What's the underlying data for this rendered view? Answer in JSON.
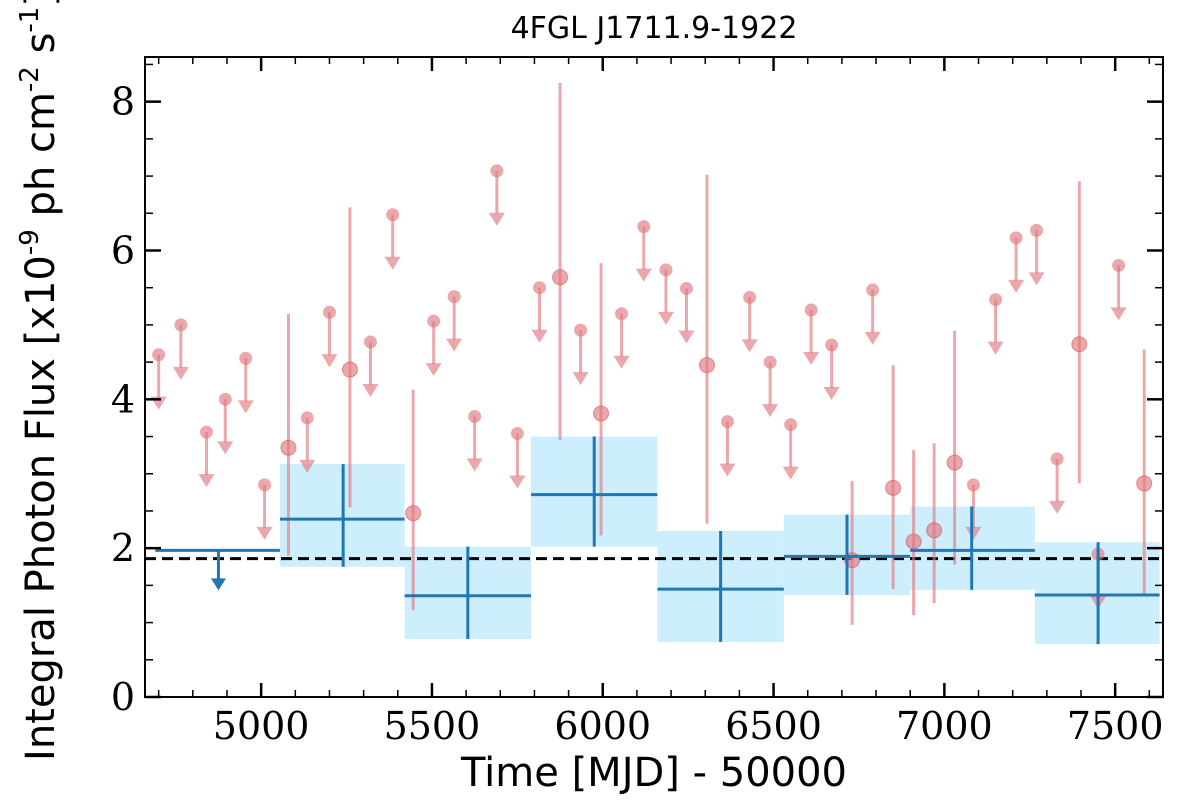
{
  "chart_data": {
    "type": "scatter",
    "title": "4FGL J1711.9-1922",
    "xlabel": "Time [MJD] - 50000",
    "ylabel": "Integral Photon Flux [x10",
    "ylabel_exp": "-9",
    "ylabel_mid": " ph cm",
    "ylabel_exp2": "-2",
    "ylabel_end": " s",
    "ylabel_exp3": "-1",
    "ylabel_close": "]",
    "xlim": [
      4660,
      7640
    ],
    "ylim": [
      0,
      8.6
    ],
    "x_ticks": [
      5000,
      5500,
      6000,
      6500,
      7000,
      7500
    ],
    "x_tick_labels": [
      "5000",
      "5500",
      "6000",
      "6500",
      "7000",
      "7500"
    ],
    "y_ticks": [
      0,
      2,
      4,
      6,
      8
    ],
    "y_tick_labels": [
      "0",
      "2",
      "4",
      "6",
      "8"
    ],
    "x_minor_step": 100,
    "y_minor_step": 0.5,
    "reference_line": {
      "y": 1.86,
      "style": "dashed",
      "color": "#000000"
    },
    "colors": {
      "short_bins": "#e07a7f",
      "long_bins": "#1f77b4",
      "long_band": "#cdeefc"
    },
    "series": [
      {
        "kind": "upper_limits",
        "color": "#e07a7f",
        "points": [
          {
            "x": 4700,
            "y": 4.6
          },
          {
            "x": 4765,
            "y": 5.0
          },
          {
            "x": 4840,
            "y": 3.56
          },
          {
            "x": 4895,
            "y": 4.0
          },
          {
            "x": 4955,
            "y": 4.55
          },
          {
            "x": 5010,
            "y": 2.85
          },
          {
            "x": 5135,
            "y": 3.75
          },
          {
            "x": 5200,
            "y": 5.17
          },
          {
            "x": 5320,
            "y": 4.77
          },
          {
            "x": 5385,
            "y": 6.48
          },
          {
            "x": 5505,
            "y": 5.05
          },
          {
            "x": 5565,
            "y": 5.38
          },
          {
            "x": 5625,
            "y": 3.77
          },
          {
            "x": 5690,
            "y": 7.07
          },
          {
            "x": 5750,
            "y": 3.54
          },
          {
            "x": 5815,
            "y": 5.5
          },
          {
            "x": 5935,
            "y": 4.93
          },
          {
            "x": 6055,
            "y": 5.15
          },
          {
            "x": 6120,
            "y": 6.32
          },
          {
            "x": 6185,
            "y": 5.74
          },
          {
            "x": 6245,
            "y": 5.49
          },
          {
            "x": 6365,
            "y": 3.7
          },
          {
            "x": 6430,
            "y": 5.37
          },
          {
            "x": 6490,
            "y": 4.5
          },
          {
            "x": 6550,
            "y": 3.66
          },
          {
            "x": 6610,
            "y": 5.2
          },
          {
            "x": 6670,
            "y": 4.73
          },
          {
            "x": 6790,
            "y": 5.47
          },
          {
            "x": 7085,
            "y": 2.85
          },
          {
            "x": 7150,
            "y": 5.34
          },
          {
            "x": 7210,
            "y": 6.17
          },
          {
            "x": 7270,
            "y": 6.27
          },
          {
            "x": 7330,
            "y": 3.2
          },
          {
            "x": 7450,
            "y": 1.92
          },
          {
            "x": 7510,
            "y": 5.8
          }
        ]
      },
      {
        "kind": "detections",
        "color": "#e07a7f",
        "points": [
          {
            "x": 5080,
            "y": 3.35,
            "lo": 1.9,
            "hi": 5.15
          },
          {
            "x": 5260,
            "y": 4.4,
            "lo": 2.55,
            "hi": 6.58
          },
          {
            "x": 5445,
            "y": 2.47,
            "lo": 1.17,
            "hi": 4.13
          },
          {
            "x": 5875,
            "y": 5.64,
            "lo": 3.45,
            "hi": 8.25
          },
          {
            "x": 5995,
            "y": 3.81,
            "lo": 2.17,
            "hi": 5.83
          },
          {
            "x": 6305,
            "y": 4.46,
            "lo": 2.33,
            "hi": 7.02
          },
          {
            "x": 6730,
            "y": 1.84,
            "lo": 0.97,
            "hi": 2.9
          },
          {
            "x": 6850,
            "y": 2.81,
            "lo": 1.45,
            "hi": 4.46
          },
          {
            "x": 6910,
            "y": 2.09,
            "lo": 1.1,
            "hi": 3.32
          },
          {
            "x": 6970,
            "y": 2.24,
            "lo": 1.26,
            "hi": 3.41
          },
          {
            "x": 7030,
            "y": 3.15,
            "lo": 1.78,
            "hi": 4.92
          },
          {
            "x": 7395,
            "y": 4.74,
            "lo": 2.87,
            "hi": 6.93
          },
          {
            "x": 7585,
            "y": 2.87,
            "lo": 1.35,
            "hi": 4.67
          }
        ]
      },
      {
        "kind": "long_bin_upper_limit",
        "color": "#1f77b4",
        "points": [
          {
            "x": 4875,
            "x0": 4690,
            "x1": 5055,
            "y": 1.97
          }
        ]
      },
      {
        "kind": "long_bins",
        "color": "#1f77b4",
        "band_color": "#cdeefc",
        "points": [
          {
            "x": 5240,
            "x0": 5055,
            "x1": 5420,
            "y": 2.39,
            "lo": 1.75,
            "hi": 3.13
          },
          {
            "x": 5605,
            "x0": 5420,
            "x1": 5790,
            "y": 1.36,
            "lo": 0.78,
            "hi": 2.02
          },
          {
            "x": 5975,
            "x0": 5790,
            "x1": 6160,
            "y": 2.72,
            "lo": 2.02,
            "hi": 3.5
          },
          {
            "x": 6345,
            "x0": 6160,
            "x1": 6530,
            "y": 1.45,
            "lo": 0.74,
            "hi": 2.23
          },
          {
            "x": 6715,
            "x0": 6530,
            "x1": 6900,
            "y": 1.89,
            "lo": 1.37,
            "hi": 2.45
          },
          {
            "x": 7080,
            "x0": 6900,
            "x1": 7265,
            "y": 1.97,
            "lo": 1.44,
            "hi": 2.56
          },
          {
            "x": 7450,
            "x0": 7265,
            "x1": 7630,
            "y": 1.37,
            "lo": 0.71,
            "hi": 2.08
          }
        ]
      }
    ]
  }
}
